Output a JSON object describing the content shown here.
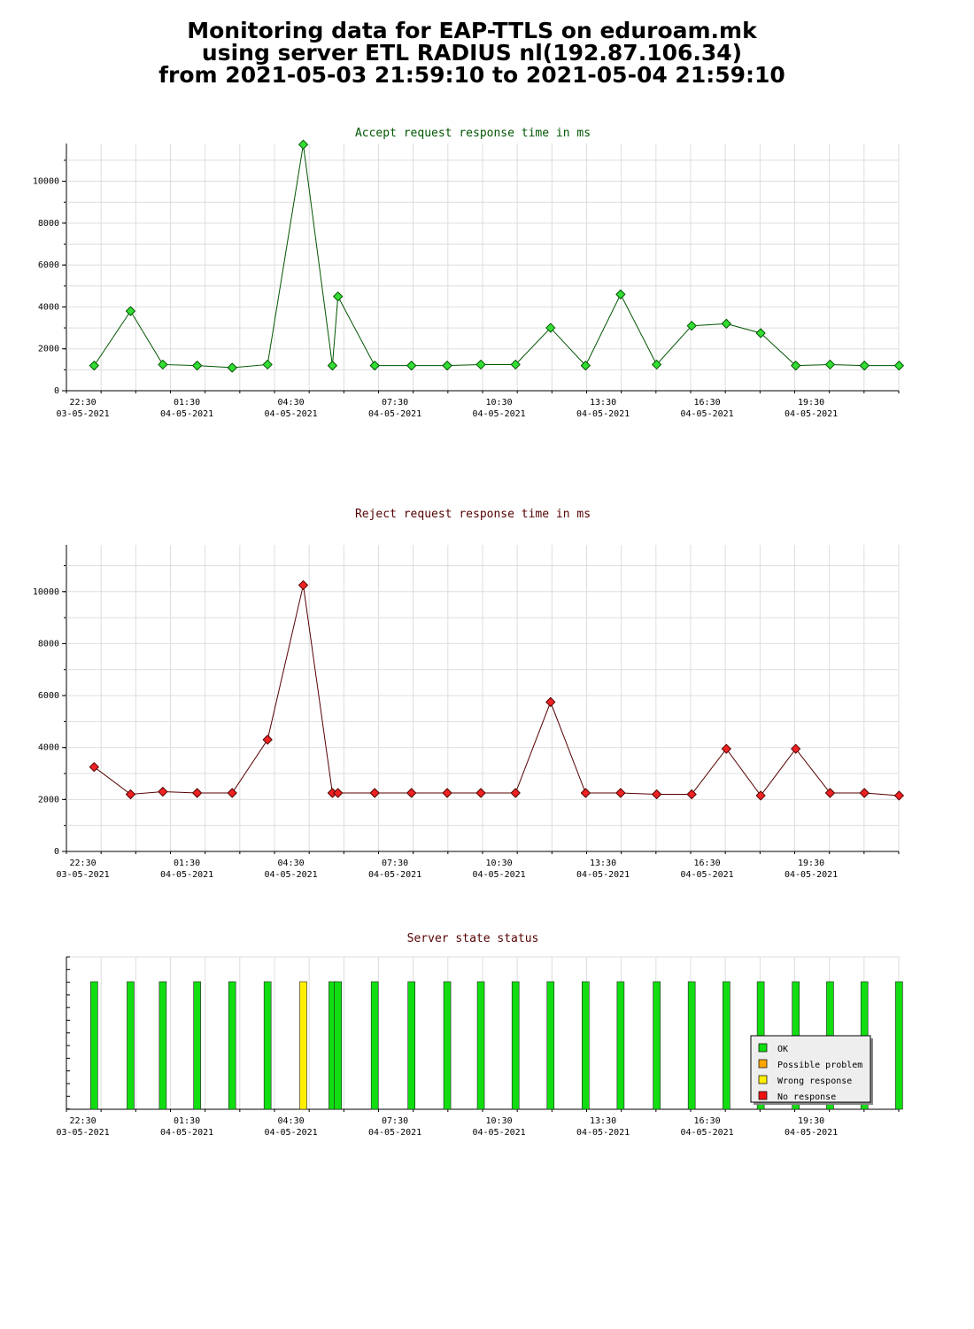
{
  "header": {
    "line1": "Monitoring data for EAP-TTLS on eduroam.mk",
    "line2": "using server ETL RADIUS nl(192.87.106.34)",
    "line3": "from 2021-05-03 21:59:10 to 2021-05-04 21:59:10"
  },
  "colors": {
    "accept_line": "#005500",
    "accept_marker": "#33dd33",
    "reject_line": "#550000",
    "reject_marker": "#ee2222",
    "ok": "#11dd11",
    "possible_problem": "#ffa500",
    "wrong_response": "#ffee00",
    "no_response": "#ee1111",
    "grid": "#dddddd"
  },
  "chart_data": [
    {
      "id": "accept",
      "type": "line",
      "title": "Accept request response time in ms",
      "x_range_hours": [
        0,
        24
      ],
      "x_ticks": [
        {
          "hour": 0.5,
          "time": "22:30",
          "date": "03-05-2021"
        },
        {
          "hour": 3.5,
          "time": "01:30",
          "date": "04-05-2021"
        },
        {
          "hour": 6.5,
          "time": "04:30",
          "date": "04-05-2021"
        },
        {
          "hour": 9.5,
          "time": "07:30",
          "date": "04-05-2021"
        },
        {
          "hour": 12.5,
          "time": "10:30",
          "date": "04-05-2021"
        },
        {
          "hour": 15.5,
          "time": "13:30",
          "date": "04-05-2021"
        },
        {
          "hour": 18.5,
          "time": "16:30",
          "date": "04-05-2021"
        },
        {
          "hour": 21.5,
          "time": "19:30",
          "date": "04-05-2021"
        }
      ],
      "ylim": [
        0,
        11800
      ],
      "y_ticks": [
        0,
        2000,
        4000,
        6000,
        8000,
        10000
      ],
      "y_tick_labels": [
        "0",
        "2000",
        "4000",
        "6000",
        "8000",
        "10000"
      ],
      "x": [
        0.8,
        1.85,
        2.78,
        3.77,
        4.78,
        5.8,
        6.83,
        7.67,
        7.83,
        8.89,
        9.95,
        10.98,
        11.95,
        12.95,
        13.96,
        14.97,
        15.98,
        17.02,
        18.03,
        19.03,
        20.02,
        21.03,
        22.02,
        23.01,
        24.01
      ],
      "values": [
        1200,
        3800,
        1250,
        1200,
        1100,
        1250,
        11750,
        1200,
        4500,
        1200,
        1200,
        1200,
        1250,
        1250,
        3000,
        1200,
        4600,
        1250,
        3100,
        3200,
        2750,
        1200,
        1250,
        1200,
        1200
      ]
    },
    {
      "id": "reject",
      "type": "line",
      "title": "Reject request response time in ms",
      "x_range_hours": [
        0,
        24
      ],
      "x_ticks": [
        {
          "hour": 0.5,
          "time": "22:30",
          "date": "03-05-2021"
        },
        {
          "hour": 3.5,
          "time": "01:30",
          "date": "04-05-2021"
        },
        {
          "hour": 6.5,
          "time": "04:30",
          "date": "04-05-2021"
        },
        {
          "hour": 9.5,
          "time": "07:30",
          "date": "04-05-2021"
        },
        {
          "hour": 12.5,
          "time": "10:30",
          "date": "04-05-2021"
        },
        {
          "hour": 15.5,
          "time": "13:30",
          "date": "04-05-2021"
        },
        {
          "hour": 18.5,
          "time": "16:30",
          "date": "04-05-2021"
        },
        {
          "hour": 21.5,
          "time": "19:30",
          "date": "04-05-2021"
        }
      ],
      "ylim": [
        0,
        11800
      ],
      "y_ticks": [
        0,
        2000,
        4000,
        6000,
        8000,
        10000
      ],
      "y_tick_labels": [
        "0",
        "2000",
        "4000",
        "6000",
        "8000",
        "10000"
      ],
      "x": [
        0.8,
        1.85,
        2.78,
        3.77,
        4.78,
        5.8,
        6.83,
        7.67,
        7.83,
        8.89,
        9.95,
        10.98,
        11.95,
        12.95,
        13.96,
        14.97,
        15.98,
        17.02,
        18.03,
        19.03,
        20.02,
        21.03,
        22.02,
        23.01,
        24.01
      ],
      "values": [
        3250,
        2200,
        2300,
        2250,
        2250,
        4300,
        10250,
        2250,
        2250,
        2250,
        2250,
        2250,
        2250,
        2250,
        5750,
        2250,
        2250,
        2200,
        2200,
        3950,
        2150,
        3950,
        2250,
        2250,
        2150
      ]
    },
    {
      "id": "status",
      "type": "bar",
      "title": "Server state status",
      "x_range_hours": [
        0,
        24
      ],
      "x_ticks": [
        {
          "hour": 0.5,
          "time": "22:30",
          "date": "03-05-2021"
        },
        {
          "hour": 3.5,
          "time": "01:30",
          "date": "04-05-2021"
        },
        {
          "hour": 6.5,
          "time": "04:30",
          "date": "04-05-2021"
        },
        {
          "hour": 9.5,
          "time": "07:30",
          "date": "04-05-2021"
        },
        {
          "hour": 12.5,
          "time": "10:30",
          "date": "04-05-2021"
        },
        {
          "hour": 15.5,
          "time": "13:30",
          "date": "04-05-2021"
        },
        {
          "hour": 18.5,
          "time": "16:30",
          "date": "04-05-2021"
        },
        {
          "hour": 21.5,
          "time": "19:30",
          "date": "04-05-2021"
        }
      ],
      "x": [
        0.8,
        1.85,
        2.78,
        3.77,
        4.78,
        5.8,
        6.83,
        7.67,
        7.83,
        8.89,
        9.95,
        10.98,
        11.95,
        12.95,
        13.96,
        14.97,
        15.98,
        17.02,
        18.03,
        19.03,
        20.02,
        21.03,
        22.02,
        23.01,
        24.01
      ],
      "states": [
        "ok",
        "ok",
        "ok",
        "ok",
        "ok",
        "ok",
        "wrong_response",
        "ok",
        "ok",
        "ok",
        "ok",
        "ok",
        "ok",
        "ok",
        "ok",
        "ok",
        "ok",
        "ok",
        "ok",
        "ok",
        "ok",
        "ok",
        "ok",
        "ok",
        "ok"
      ],
      "legend_position": "bottom-right",
      "legend": [
        {
          "key": "ok",
          "label": "OK"
        },
        {
          "key": "possible_problem",
          "label": "Possible problem"
        },
        {
          "key": "wrong_response",
          "label": "Wrong response"
        },
        {
          "key": "no_response",
          "label": "No response"
        }
      ]
    }
  ]
}
